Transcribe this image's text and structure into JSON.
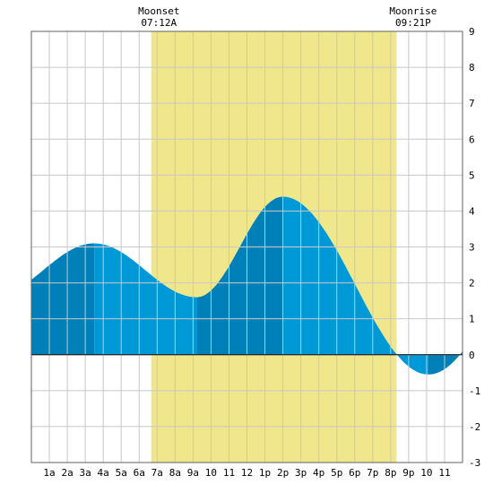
{
  "chart_data": {
    "type": "area",
    "title": "",
    "xlabel": "",
    "ylabel": "",
    "x_tick_labels": [
      "1a",
      "2a",
      "3a",
      "4a",
      "5a",
      "6a",
      "7a",
      "8a",
      "9a",
      "10",
      "11",
      "12",
      "1p",
      "2p",
      "3p",
      "4p",
      "5p",
      "6p",
      "7p",
      "8p",
      "9p",
      "10",
      "11"
    ],
    "x_range_hours": [
      0,
      24
    ],
    "ylim": [
      -3,
      9
    ],
    "y_tick_labels": [
      "-3",
      "-2",
      "-1",
      "0",
      "1",
      "2",
      "3",
      "4",
      "5",
      "6",
      "7",
      "8",
      "9"
    ],
    "grid": true,
    "daylight_hours": [
      6.67,
      20.33
    ],
    "annotations": [
      {
        "label": "Moonset",
        "time": "07:12A",
        "hour": 7.2
      },
      {
        "label": "Moonrise",
        "time": "09:21P",
        "hour": 21.35
      }
    ],
    "extremes": [
      {
        "hour": 3.5,
        "value": 3.1
      },
      {
        "hour": 9.2,
        "value": 1.6
      },
      {
        "hour": 14.0,
        "value": 4.4
      },
      {
        "hour": 22.1,
        "value": -0.55
      }
    ],
    "curve_start": {
      "hour": 0,
      "value": 1.2
    },
    "curve_end": {
      "hour": 24,
      "value": 0.65
    },
    "colors": {
      "daylight": "#f0e68c",
      "fill_light": "#0099d8",
      "fill_dark": "#0080b8",
      "grid": "#c8c8c8",
      "frame": "#606060"
    }
  }
}
